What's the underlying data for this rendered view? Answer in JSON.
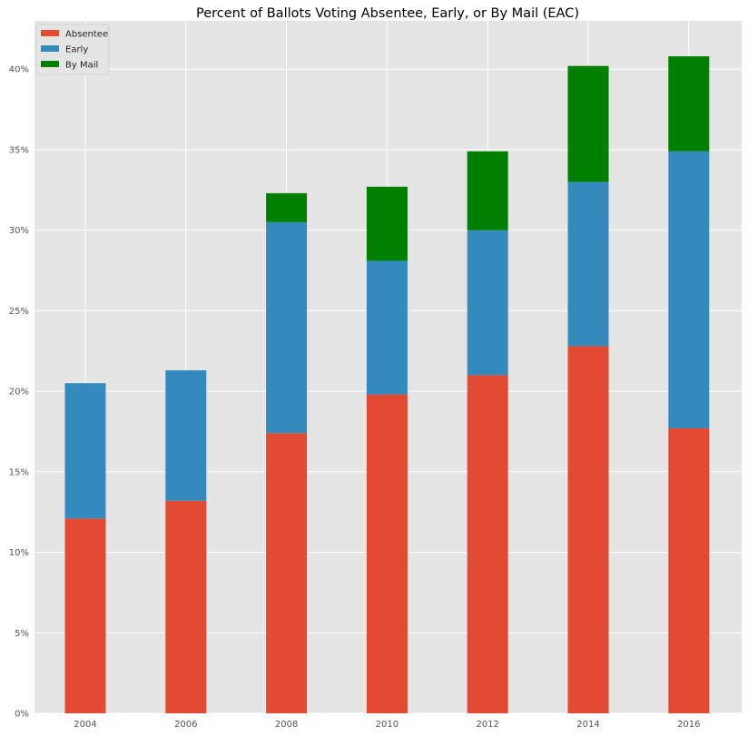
{
  "chart_data": {
    "type": "bar",
    "stacked": true,
    "title": "Percent of Ballots Voting Absentee, Early, or By Mail (EAC)",
    "xlabel": "",
    "ylabel": "",
    "categories": [
      "2004",
      "2006",
      "2008",
      "2010",
      "2012",
      "2014",
      "2016"
    ],
    "series": [
      {
        "name": "Absentee",
        "color": "#E24A33",
        "values": [
          12.1,
          13.2,
          17.4,
          19.8,
          21.0,
          22.8,
          17.7
        ]
      },
      {
        "name": "Early",
        "color": "#348ABD",
        "values": [
          8.4,
          8.1,
          13.1,
          8.3,
          9.0,
          10.2,
          17.2
        ]
      },
      {
        "name": "By Mail",
        "color": "#008000",
        "values": [
          0.0,
          0.0,
          1.8,
          4.6,
          4.9,
          7.2,
          5.9
        ]
      }
    ],
    "ylim": [
      0,
      43
    ],
    "yticks": [
      0,
      5,
      10,
      15,
      20,
      25,
      30,
      35,
      40
    ],
    "ytick_labels": [
      "0%",
      "5%",
      "10%",
      "15%",
      "20%",
      "25%",
      "30%",
      "35%",
      "40%"
    ],
    "grid": true,
    "legend_position": "top-left",
    "background_color": "#E5E5E5",
    "grid_color": "#FFFFFF"
  }
}
